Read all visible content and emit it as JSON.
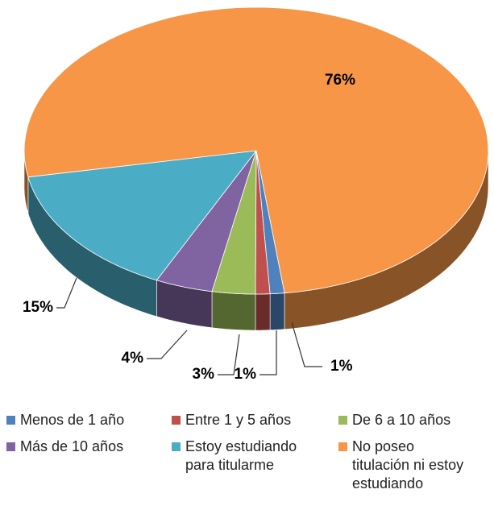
{
  "chart_data": {
    "type": "pie",
    "categories": [
      "Menos de 1 año",
      "Entre 1 y 5 años",
      "De 6 a 10 años",
      "Más de 10 años",
      "Estoy estudiando para titularme",
      "No poseo titulación ni estoy estudiando"
    ],
    "values": [
      1,
      1,
      3,
      4,
      15,
      76
    ],
    "value_labels": [
      "1%",
      "1%",
      "3%",
      "4%",
      "15%",
      "76%"
    ],
    "colors": [
      "#4f81bd",
      "#c0504d",
      "#9bbb59",
      "#8064a2",
      "#4bacc6",
      "#f79646"
    ],
    "legend": "bottom"
  }
}
